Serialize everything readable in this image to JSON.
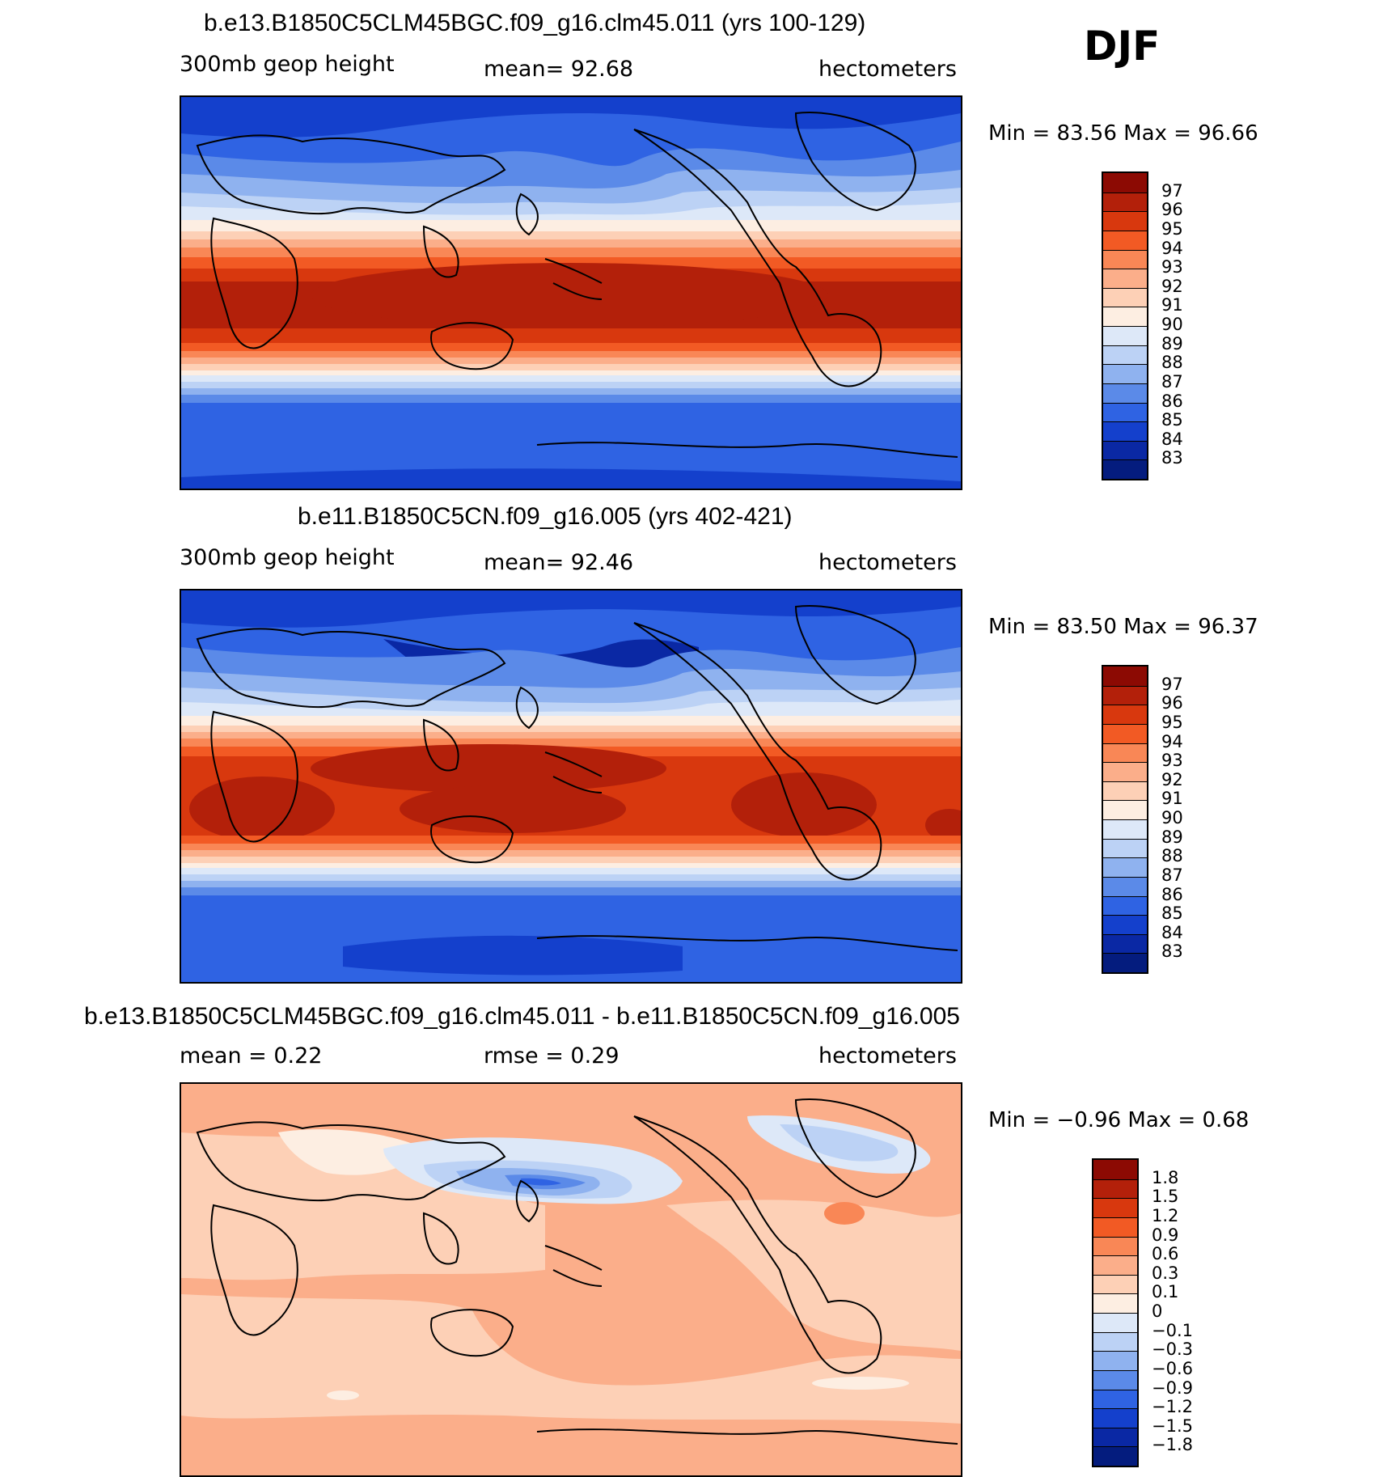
{
  "season": "DJF",
  "panels": [
    {
      "title": "b.e13.B1850C5CLM45BGC.f09_g16.clm45.011 (yrs 100-129)",
      "left_label": "300mb geop height",
      "center_label": "mean=   92.68",
      "right_label": "hectometers",
      "minmax": "Min =   83.56 Max =   96.66",
      "colorbar_labels": [
        "97",
        "96",
        "95",
        "94",
        "93",
        "92",
        "91",
        "90",
        "89",
        "88",
        "87",
        "86",
        "85",
        "84",
        "83"
      ]
    },
    {
      "title": "b.e11.B1850C5CN.f09_g16.005 (yrs 402-421)",
      "left_label": "300mb geop height",
      "center_label": "mean=   92.46",
      "right_label": "hectometers",
      "minmax": "Min =   83.50 Max =   96.37",
      "colorbar_labels": [
        "97",
        "96",
        "95",
        "94",
        "93",
        "92",
        "91",
        "90",
        "89",
        "88",
        "87",
        "86",
        "85",
        "84",
        "83"
      ]
    },
    {
      "title": "b.e13.B1850C5CLM45BGC.f09_g16.clm45.011 - b.e11.B1850C5CN.f09_g16.005",
      "left_label": "mean =     0.22",
      "center_label": "rmse =     0.29",
      "right_label": "hectometers",
      "minmax": "Min =   −0.96 Max =     0.68",
      "colorbar_labels": [
        "1.8",
        "1.5",
        "1.2",
        "0.9",
        "0.6",
        "0.3",
        "0.1",
        "0",
        "−0.1",
        "−0.3",
        "−0.6",
        "−0.9",
        "−1.2",
        "−1.5",
        "−1.8"
      ]
    }
  ],
  "colorbar_colors": [
    "#8c0a03",
    "#b3200a",
    "#d8380e",
    "#f25a24",
    "#f98756",
    "#fbae8a",
    "#fdd0b6",
    "#fdeee2",
    "#dde8f8",
    "#bcd2f5",
    "#8fb2ef",
    "#5b8ae8",
    "#2f63e3",
    "#1440cc",
    "#0a28a4",
    "#041c7e"
  ],
  "chart_data": [
    {
      "type": "heatmap",
      "title": "b.e13.B1850C5CLM45BGC.f09_g16.clm45.011 (yrs 100-129)",
      "variable": "300mb geop height",
      "units": "hectometers",
      "mean": 92.68,
      "min": 83.56,
      "max": 96.66,
      "levels": [
        83,
        84,
        85,
        86,
        87,
        88,
        89,
        90,
        91,
        92,
        93,
        94,
        95,
        96,
        97
      ]
    },
    {
      "type": "heatmap",
      "title": "b.e11.B1850C5CN.f09_g16.005 (yrs 402-421)",
      "variable": "300mb geop height",
      "units": "hectometers",
      "mean": 92.46,
      "min": 83.5,
      "max": 96.37,
      "levels": [
        83,
        84,
        85,
        86,
        87,
        88,
        89,
        90,
        91,
        92,
        93,
        94,
        95,
        96,
        97
      ]
    },
    {
      "type": "heatmap",
      "title": "b.e13.B1850C5CLM45BGC.f09_g16.clm45.011 - b.e11.B1850C5CN.f09_g16.005",
      "units": "hectometers",
      "mean": 0.22,
      "rmse": 0.29,
      "min": -0.96,
      "max": 0.68,
      "levels": [
        -1.8,
        -1.5,
        -1.2,
        -0.9,
        -0.6,
        -0.3,
        -0.1,
        0,
        0.1,
        0.3,
        0.6,
        0.9,
        1.2,
        1.5,
        1.8
      ]
    }
  ]
}
